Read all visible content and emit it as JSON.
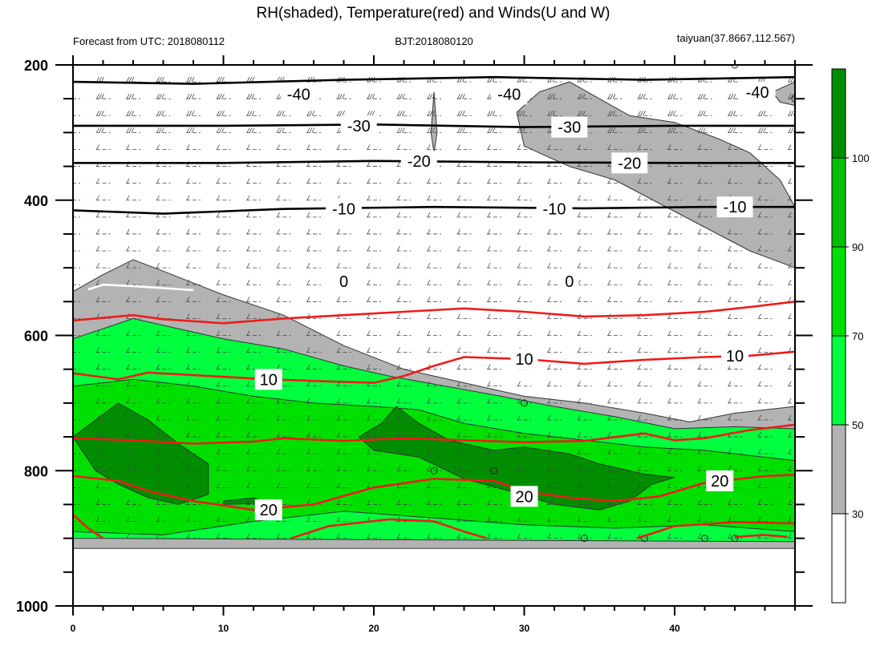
{
  "chart_data": {
    "type": "contour",
    "title": "RH(shaded), Temperature(red) and Winds(U and W)",
    "subtitle_left": "Forecast from UTC: 2018080112",
    "subtitle_center": "BJT:2018080120",
    "subtitle_right": "taiyuan(37.8667,112.567)",
    "xlim": [
      0,
      48
    ],
    "ylim": [
      200,
      1000
    ],
    "y_reversed": true,
    "x_ticks": [
      0,
      10,
      20,
      30,
      40
    ],
    "x_tick_labels": [
      "0",
      "10",
      "20",
      "30",
      "40"
    ],
    "y_ticks": [
      200,
      400,
      600,
      800,
      1000
    ],
    "y_tick_labels": [
      "200",
      "400",
      "600",
      "800",
      "1000"
    ],
    "colorbar": {
      "levels": [
        30,
        50,
        70,
        90,
        100
      ],
      "level_labels": [
        "30",
        "50",
        "70",
        "90",
        "100"
      ],
      "colors": [
        "#ffffff",
        "#b3b3b3",
        "#00ff3c",
        "#00e000",
        "#00c000",
        "#008e00"
      ]
    },
    "rh_regions": [
      {
        "level": 30,
        "color": "#b3b3b3",
        "outline": [
          [
            0,
            535
          ],
          [
            2,
            510
          ],
          [
            4,
            488
          ],
          [
            6,
            505
          ],
          [
            10,
            540
          ],
          [
            14,
            570
          ],
          [
            18,
            615
          ],
          [
            22,
            650
          ],
          [
            26,
            670
          ],
          [
            30,
            690
          ],
          [
            34,
            700
          ],
          [
            38,
            715
          ],
          [
            41,
            728
          ],
          [
            44,
            715
          ],
          [
            48,
            705
          ],
          [
            48,
            915
          ],
          [
            0,
            915
          ]
        ]
      },
      {
        "level": 30,
        "color": "#b3b3b3",
        "outline": [
          [
            29.5,
            270
          ],
          [
            31,
            240
          ],
          [
            33,
            225
          ],
          [
            35,
            250
          ],
          [
            37,
            275
          ],
          [
            40,
            285
          ],
          [
            43,
            310
          ],
          [
            45,
            330
          ],
          [
            47,
            370
          ],
          [
            48,
            410
          ],
          [
            48,
            500
          ],
          [
            45,
            475
          ],
          [
            42,
            440
          ],
          [
            39,
            405
          ],
          [
            36,
            370
          ],
          [
            33,
            350
          ],
          [
            30,
            320
          ]
        ]
      },
      {
        "level": 30,
        "color": "#b3b3b3",
        "outline": [
          [
            46.5,
            240
          ],
          [
            48,
            225
          ],
          [
            48,
            260
          ],
          [
            47,
            255
          ]
        ]
      },
      {
        "level": 30,
        "color": "#b3b3b3",
        "outline": [
          [
            23.8,
            300
          ],
          [
            24,
            240
          ],
          [
            24.2,
            300
          ],
          [
            24,
            330
          ]
        ]
      },
      {
        "level": 50,
        "color": "#00ff3c",
        "outline": [
          [
            0,
            605
          ],
          [
            2,
            590
          ],
          [
            4,
            575
          ],
          [
            7,
            590
          ],
          [
            10,
            605
          ],
          [
            14,
            620
          ],
          [
            18,
            645
          ],
          [
            21,
            660
          ],
          [
            24,
            672
          ],
          [
            28,
            688
          ],
          [
            32,
            705
          ],
          [
            36,
            720
          ],
          [
            40,
            738
          ],
          [
            44,
            735
          ],
          [
            48,
            738
          ],
          [
            48,
            905
          ],
          [
            0,
            900
          ]
        ]
      },
      {
        "level": 70,
        "color": "#00e000",
        "outline": [
          [
            0,
            675
          ],
          [
            4,
            665
          ],
          [
            8,
            675
          ],
          [
            12,
            690
          ],
          [
            16,
            700
          ],
          [
            20,
            705
          ],
          [
            23,
            710
          ],
          [
            26,
            730
          ],
          [
            30,
            745
          ],
          [
            34,
            755
          ],
          [
            38,
            765
          ],
          [
            42,
            770
          ],
          [
            48,
            785
          ],
          [
            48,
            890
          ],
          [
            42,
            880
          ],
          [
            36,
            885
          ],
          [
            30,
            880
          ],
          [
            24,
            870
          ],
          [
            18,
            860
          ],
          [
            12,
            875
          ],
          [
            6,
            895
          ],
          [
            0,
            890
          ]
        ]
      },
      {
        "level": 90,
        "color": "#008e00",
        "outline": [
          [
            0,
            750
          ],
          [
            1.5,
            725
          ],
          [
            3,
            700
          ],
          [
            5,
            725
          ],
          [
            7,
            760
          ],
          [
            9,
            790
          ],
          [
            9,
            835
          ],
          [
            7,
            850
          ],
          [
            5,
            840
          ],
          [
            3,
            820
          ],
          [
            1.5,
            800
          ]
        ]
      },
      {
        "level": 90,
        "color": "#008e00",
        "outline": [
          [
            19,
            750
          ],
          [
            20.5,
            730
          ],
          [
            21.5,
            705
          ],
          [
            23,
            730
          ],
          [
            25,
            755
          ],
          [
            28,
            770
          ],
          [
            30,
            765
          ],
          [
            33,
            775
          ],
          [
            35,
            790
          ],
          [
            38,
            805
          ],
          [
            40,
            810
          ],
          [
            38.5,
            820
          ],
          [
            37,
            845
          ],
          [
            35,
            858
          ],
          [
            32,
            850
          ],
          [
            29,
            830
          ],
          [
            26,
            812
          ],
          [
            23,
            780
          ],
          [
            20,
            770
          ]
        ]
      },
      {
        "level": 90,
        "color": "#008e00",
        "outline": [
          [
            10,
            845
          ],
          [
            12,
            840
          ],
          [
            13,
            848
          ],
          [
            10,
            850
          ]
        ]
      }
    ],
    "temperature_contours": [
      {
        "value": -40,
        "label": "-40",
        "points": [
          [
            0,
            225
          ],
          [
            8,
            228
          ],
          [
            18,
            222
          ],
          [
            28,
            218
          ],
          [
            38,
            222
          ],
          [
            48,
            218
          ]
        ],
        "label_at": [
          [
            15,
            243
          ],
          [
            29,
            243
          ],
          [
            45.5,
            240
          ]
        ]
      },
      {
        "value": -30,
        "label": "-30",
        "points": [
          [
            0,
            290
          ],
          [
            10,
            290
          ],
          [
            20,
            288
          ],
          [
            30,
            292
          ],
          [
            40,
            290
          ],
          [
            48,
            290
          ]
        ],
        "label_at": [
          [
            19,
            290
          ],
          [
            33,
            292
          ]
        ]
      },
      {
        "value": -20,
        "label": "-20",
        "points": [
          [
            0,
            345
          ],
          [
            10,
            345
          ],
          [
            20,
            342
          ],
          [
            30,
            344
          ],
          [
            40,
            345
          ],
          [
            48,
            345
          ]
        ],
        "label_at": [
          [
            23,
            342
          ],
          [
            37,
            345
          ]
        ]
      },
      {
        "value": -10,
        "label": "-10",
        "points": [
          [
            0,
            415
          ],
          [
            6,
            420
          ],
          [
            14,
            413
          ],
          [
            24,
            410
          ],
          [
            34,
            412
          ],
          [
            42,
            410
          ],
          [
            48,
            410
          ]
        ],
        "label_at": [
          [
            18,
            413
          ],
          [
            32,
            413
          ],
          [
            44,
            410
          ]
        ]
      },
      {
        "value": 0,
        "label": "0",
        "points": [
          [
            1,
            532
          ],
          [
            2,
            525
          ],
          [
            4,
            527
          ],
          [
            8,
            533
          ]
        ],
        "label_at": [
          [
            18,
            520
          ],
          [
            33,
            520
          ]
        ]
      },
      {
        "value": 10,
        "label": "10",
        "points": [
          [
            0,
            578
          ],
          [
            4,
            570
          ],
          [
            6,
            576
          ],
          [
            10,
            582
          ],
          [
            14,
            575
          ],
          [
            18,
            570
          ],
          [
            22,
            565
          ],
          [
            26,
            560
          ],
          [
            30,
            565
          ],
          [
            34,
            572
          ],
          [
            38,
            570
          ],
          [
            42,
            565
          ],
          [
            45,
            558
          ],
          [
            48,
            550
          ]
        ],
        "label_at": []
      },
      {
        "value": 10,
        "label": "10",
        "points": [
          [
            0,
            656
          ],
          [
            3,
            665
          ],
          [
            5,
            655
          ],
          [
            9,
            660
          ],
          [
            13,
            665
          ],
          [
            17,
            668
          ],
          [
            20,
            670
          ],
          [
            22,
            660
          ],
          [
            24,
            645
          ],
          [
            26,
            632
          ],
          [
            30,
            635
          ],
          [
            34,
            642
          ],
          [
            38,
            636
          ],
          [
            42,
            632
          ],
          [
            45,
            630
          ],
          [
            48,
            624
          ]
        ],
        "label_at": [
          [
            13,
            665
          ],
          [
            30,
            635
          ],
          [
            44,
            630
          ]
        ]
      },
      {
        "value": 20,
        "label": "20",
        "points": [
          [
            0,
            752
          ],
          [
            4,
            755
          ],
          [
            8,
            760
          ],
          [
            12,
            757
          ],
          [
            14,
            752
          ],
          [
            18,
            756
          ],
          [
            22,
            752
          ],
          [
            26,
            755
          ],
          [
            30,
            758
          ],
          [
            34,
            756
          ],
          [
            38,
            745
          ],
          [
            40,
            755
          ],
          [
            42,
            752
          ],
          [
            45,
            740
          ],
          [
            48,
            732
          ]
        ],
        "label_at": []
      },
      {
        "value": 20,
        "label": "20",
        "points": [
          [
            0,
            808
          ],
          [
            3,
            815
          ],
          [
            5,
            830
          ],
          [
            8,
            845
          ],
          [
            12,
            858
          ],
          [
            16,
            850
          ],
          [
            20,
            825
          ],
          [
            24,
            812
          ],
          [
            28,
            815
          ],
          [
            30,
            830
          ],
          [
            33,
            840
          ],
          [
            36,
            845
          ],
          [
            39,
            838
          ],
          [
            42,
            818
          ],
          [
            46,
            808
          ],
          [
            48,
            806
          ]
        ],
        "label_at": [
          [
            13,
            858
          ],
          [
            30,
            838
          ],
          [
            43,
            815
          ]
        ]
      },
      {
        "value": 30,
        "label": "",
        "points": [
          [
            0,
            865
          ],
          [
            1,
            885
          ],
          [
            2,
            900
          ]
        ],
        "label_at": []
      },
      {
        "value": 30,
        "label": "",
        "points": [
          [
            14.5,
            900
          ],
          [
            17,
            882
          ],
          [
            21,
            872
          ],
          [
            24,
            875
          ],
          [
            26,
            890
          ],
          [
            27.5,
            900
          ]
        ],
        "label_at": []
      },
      {
        "value": 30,
        "label": "",
        "points": [
          [
            37.5,
            900
          ],
          [
            40,
            882
          ],
          [
            44,
            876
          ],
          [
            48,
            878
          ]
        ],
        "label_at": []
      },
      {
        "value": 30,
        "label": "",
        "points": [
          [
            44,
            898
          ],
          [
            46,
            895
          ],
          [
            47.5,
            898
          ]
        ],
        "label_at": []
      }
    ],
    "wind_levels_hpa": [
      200,
      225,
      250,
      275,
      300,
      325,
      350,
      375,
      400,
      425,
      450,
      475,
      500,
      525,
      550,
      575,
      600,
      625,
      650,
      675,
      700,
      725,
      750,
      775,
      800,
      825,
      850,
      875,
      900
    ],
    "calm_points": [
      [
        44,
        200
      ],
      [
        48,
        250
      ],
      [
        30,
        700
      ],
      [
        24,
        800
      ],
      [
        28,
        800
      ],
      [
        34,
        900
      ],
      [
        38,
        900
      ],
      [
        42,
        900
      ],
      [
        44,
        900
      ]
    ]
  }
}
